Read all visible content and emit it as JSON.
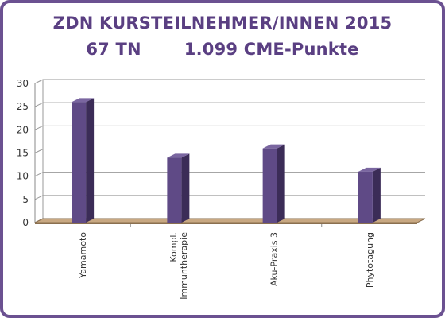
{
  "header": {
    "title_line1": "ZDN KURSTEILNEHMER/INNEN 2015",
    "subtitle_left": "67 TN",
    "subtitle_right": "1.099 CME-Punkte"
  },
  "chart_data": {
    "type": "bar",
    "title": "ZDN KURSTEILNEHMER/INNEN 2015",
    "subtitle": "67 TN 1.099 CME-Punkte",
    "categories": [
      "Yamamoto",
      "Kompl. Immuntherapie",
      "Aku-Praxis 3",
      "Phytotagung"
    ],
    "category_lines": [
      [
        "Yamamoto"
      ],
      [
        "Kompl.",
        "Immuntherapie"
      ],
      [
        "Aku-Praxis 3"
      ],
      [
        "Phytotagung"
      ]
    ],
    "series": [
      {
        "values": [
          26,
          14,
          16,
          11
        ]
      }
    ],
    "ylim": [
      0,
      30
    ],
    "yticks": [
      0,
      5,
      10,
      15,
      20,
      25,
      30
    ],
    "grid": true,
    "style": "3d-column",
    "colors": {
      "bar": "#5f4a86",
      "floor": "#c8a882",
      "border": "#6b5191",
      "title": "#5a3f82"
    }
  }
}
